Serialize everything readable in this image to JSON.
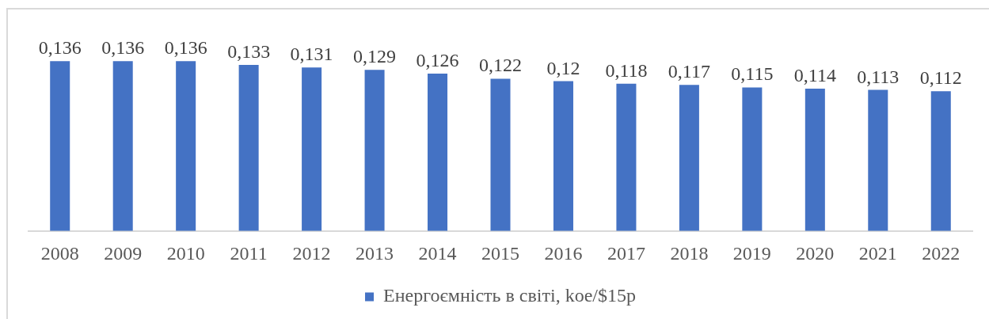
{
  "chart_data": {
    "type": "bar",
    "categories": [
      "2008",
      "2009",
      "2010",
      "2011",
      "2012",
      "2013",
      "2014",
      "2015",
      "2016",
      "2017",
      "2018",
      "2019",
      "2020",
      "2021",
      "2022"
    ],
    "series": [
      {
        "name": "Енергоємність в світі, koe/$15p",
        "color": "#4472c4",
        "values": [
          0.136,
          0.136,
          0.136,
          0.133,
          0.131,
          0.129,
          0.126,
          0.122,
          0.12,
          0.118,
          0.117,
          0.115,
          0.114,
          0.113,
          0.112
        ],
        "value_labels": [
          "0,136",
          "0,136",
          "0,136",
          "0,133",
          "0,131",
          "0,129",
          "0,126",
          "0,122",
          "0,12",
          "0,118",
          "0,117",
          "0,115",
          "0,114",
          "0,113",
          "0,112"
        ]
      }
    ],
    "tick_labels": "x",
    "legend": "bottom"
  }
}
